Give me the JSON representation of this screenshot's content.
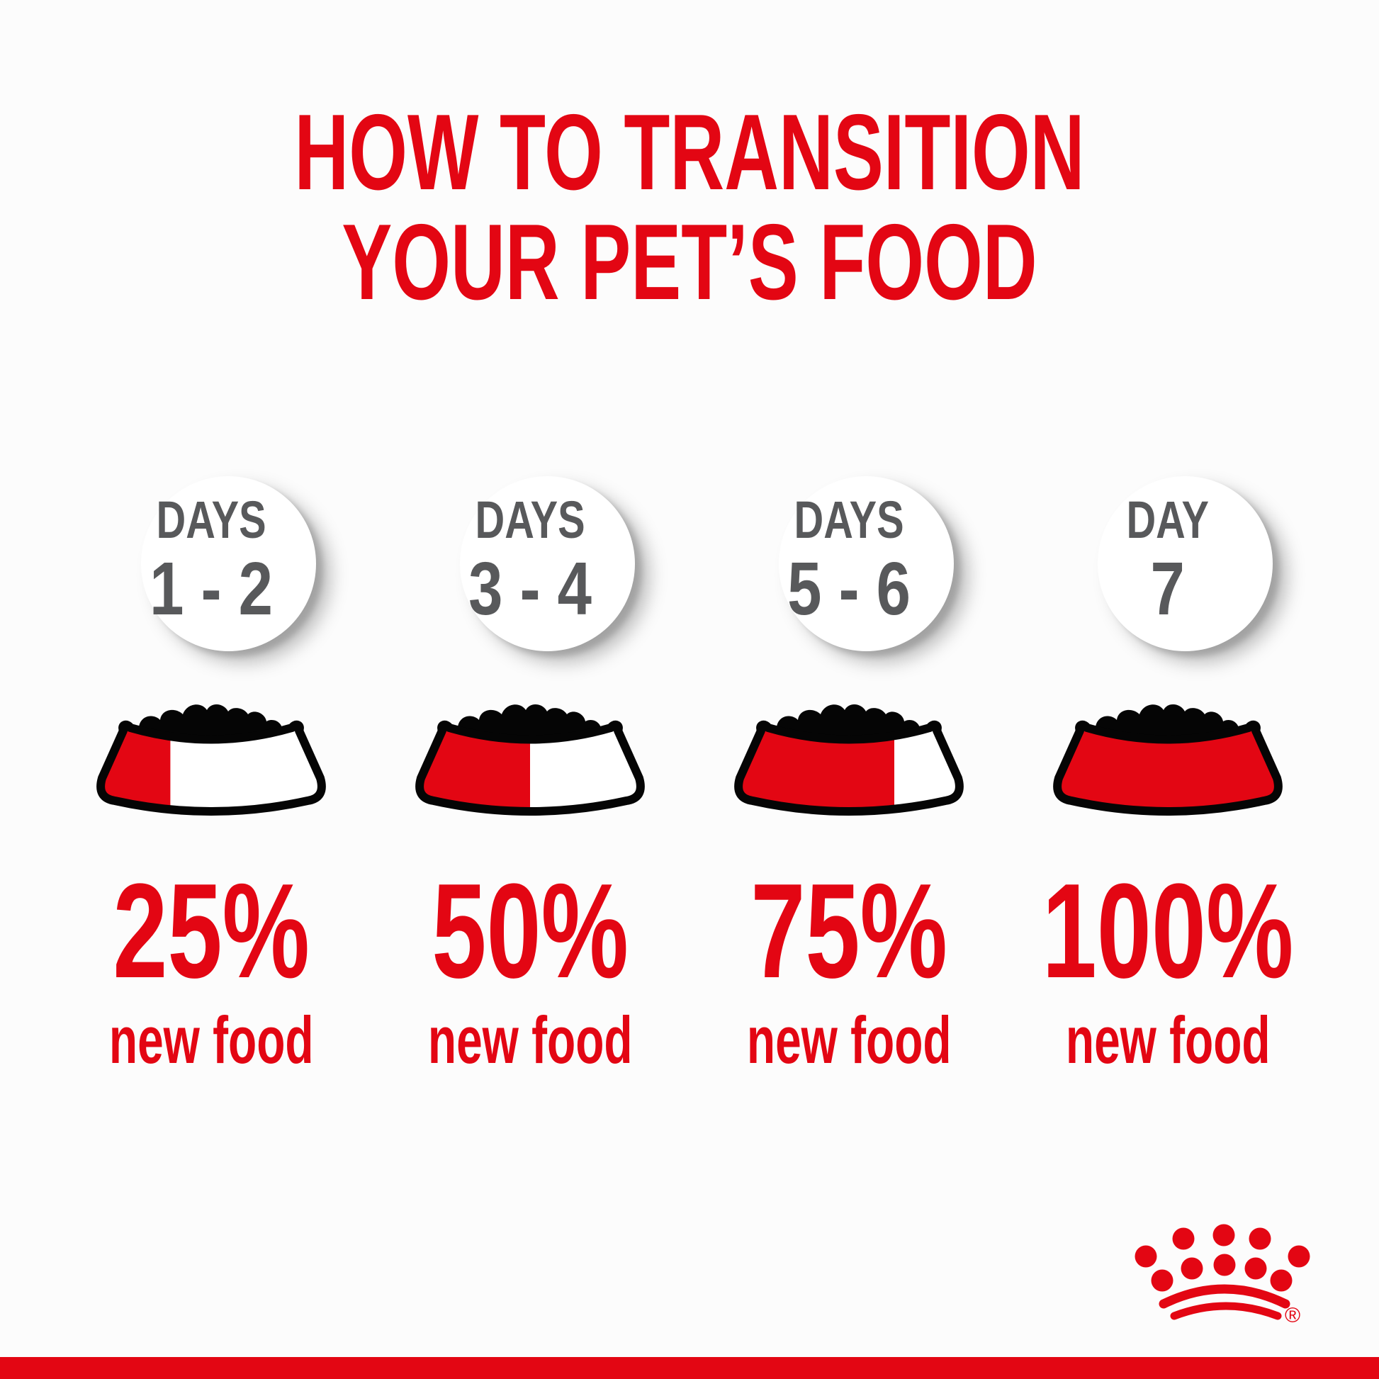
{
  "title": {
    "line1": "HOW TO TRANSITION",
    "line2": "YOUR PET’S FOOD"
  },
  "columns": [
    {
      "day_label": "DAYS",
      "day_range": "1 - 2",
      "percent": "25%",
      "percent_value": 25,
      "caption": "new food"
    },
    {
      "day_label": "DAYS",
      "day_range": "3 - 4",
      "percent": "50%",
      "percent_value": 50,
      "caption": "new food"
    },
    {
      "day_label": "DAYS",
      "day_range": "5 - 6",
      "percent": "75%",
      "percent_value": 75,
      "caption": "new food"
    },
    {
      "day_label": "DAY",
      "day_range": "7",
      "percent": "100%",
      "percent_value": 100,
      "caption": "new food"
    }
  ],
  "brand": {
    "logo": "royal-canin-crown",
    "registered_mark": "®"
  },
  "colors": {
    "red": "#E30613",
    "gray": "#58595B",
    "black": "#050505",
    "background": "#FCFCFC"
  }
}
